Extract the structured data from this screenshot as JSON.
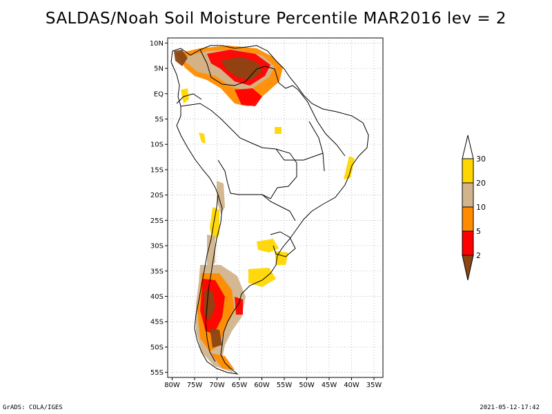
{
  "title": "SALDAS/Noah Soil Moisture Percentile MAR2016 lev = 2",
  "footer": {
    "left": "GrADS: COLA/IGES",
    "right": "2021-05-12-17:42"
  },
  "map": {
    "lon_range": [
      -81,
      -33
    ],
    "lat_range": [
      -56,
      11
    ],
    "lon_ticks": [
      {
        "value": -80,
        "label": "80W"
      },
      {
        "value": -75,
        "label": "75W"
      },
      {
        "value": -70,
        "label": "70W"
      },
      {
        "value": -65,
        "label": "65W"
      },
      {
        "value": -60,
        "label": "60W"
      },
      {
        "value": -55,
        "label": "55W"
      },
      {
        "value": -50,
        "label": "50W"
      },
      {
        "value": -45,
        "label": "45W"
      },
      {
        "value": -40,
        "label": "40W"
      },
      {
        "value": -35,
        "label": "35W"
      }
    ],
    "lat_ticks": [
      {
        "value": 10,
        "label": "10N"
      },
      {
        "value": 5,
        "label": "5N"
      },
      {
        "value": 0,
        "label": "EQ"
      },
      {
        "value": -5,
        "label": "5S"
      },
      {
        "value": -10,
        "label": "10S"
      },
      {
        "value": -15,
        "label": "15S"
      },
      {
        "value": -20,
        "label": "20S"
      },
      {
        "value": -25,
        "label": "25S"
      },
      {
        "value": -30,
        "label": "30S"
      },
      {
        "value": -35,
        "label": "35S"
      },
      {
        "value": -40,
        "label": "40S"
      },
      {
        "value": -45,
        "label": "45S"
      },
      {
        "value": -50,
        "label": "50S"
      },
      {
        "value": -55,
        "label": "55S"
      }
    ],
    "grid": true
  },
  "legend": {
    "bins": [
      {
        "color": "#ffffff",
        "label": "30"
      },
      {
        "color": "#ffd700",
        "label": "20"
      },
      {
        "color": "#d2b48c",
        "label": "10"
      },
      {
        "color": "#ff8c00",
        "label": "5"
      },
      {
        "color": "#ff0000",
        "label": "2"
      },
      {
        "color": "#8b4513",
        "label": ""
      }
    ]
  },
  "colors": {
    "p2": "#8b4513",
    "p5": "#ff0000",
    "p10": "#ff8c00",
    "p20": "#d2b48c",
    "p30": "#ffd700"
  }
}
